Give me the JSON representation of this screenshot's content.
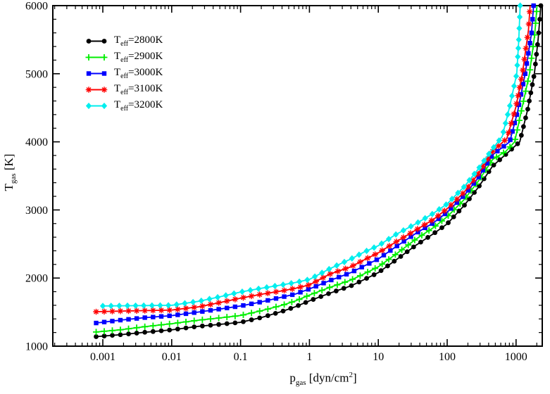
{
  "chart_data": {
    "type": "line",
    "title": "",
    "xlabel": "p_gas [dyn/cm^2]",
    "ylabel": "T_gas [K]",
    "xlabel_parts": {
      "base": "p",
      "sub": "gas",
      "mid": " [dyn/cm",
      "sup": "2",
      "end": "]"
    },
    "ylabel_parts": {
      "base": "T",
      "sub": "gas",
      "end": " [K]"
    },
    "x_scale": "log",
    "y_scale": "linear",
    "xlim": [
      0.00019,
      2400
    ],
    "ylim": [
      1000,
      6000
    ],
    "x_major_ticks": [
      0.001,
      0.01,
      0.1,
      1,
      10,
      100,
      1000
    ],
    "x_tick_labels": [
      "0.001",
      "0.01",
      "0.1",
      "1",
      "10",
      "100",
      "1000"
    ],
    "y_major_ticks": [
      1000,
      2000,
      3000,
      4000,
      5000,
      6000
    ],
    "y_tick_labels": [
      "1000",
      "2000",
      "3000",
      "4000",
      "5000",
      "6000"
    ],
    "y_minor_step": 200,
    "grid": false,
    "legend_position": "top-left",
    "series": [
      {
        "name": "Teff=2800K",
        "label_prefix": "T",
        "label_sub": "eff",
        "label_suffix": "=2800K",
        "color": "#000000",
        "marker": "circle",
        "points": [
          [
            0.0008,
            1140
          ],
          [
            0.0018,
            1168
          ],
          [
            0.004,
            1203
          ],
          [
            0.01,
            1240
          ],
          [
            0.025,
            1292
          ],
          [
            0.05,
            1320
          ],
          [
            0.1,
            1350
          ],
          [
            0.2,
            1420
          ],
          [
            0.4,
            1510
          ],
          [
            0.63,
            1580
          ],
          [
            1,
            1665
          ],
          [
            2,
            1780
          ],
          [
            4,
            1885
          ],
          [
            6.3,
            1980
          ],
          [
            10,
            2080
          ],
          [
            18,
            2265
          ],
          [
            35,
            2480
          ],
          [
            63,
            2650
          ],
          [
            100,
            2795
          ],
          [
            178,
            3070
          ],
          [
            282,
            3330
          ],
          [
            457,
            3645
          ],
          [
            708,
            3815
          ],
          [
            1132,
            4000
          ],
          [
            1479,
            4480
          ],
          [
            1845,
            5000
          ],
          [
            2089,
            5500
          ],
          [
            2290,
            6000
          ]
        ]
      },
      {
        "name": "Teff=2900K",
        "label_prefix": "T",
        "label_sub": "eff",
        "label_suffix": "=2900K",
        "color": "#00ee00",
        "marker": "plus",
        "points": [
          [
            0.0008,
            1208
          ],
          [
            0.0018,
            1240
          ],
          [
            0.004,
            1285
          ],
          [
            0.01,
            1330
          ],
          [
            0.025,
            1382
          ],
          [
            0.05,
            1415
          ],
          [
            0.1,
            1450
          ],
          [
            0.2,
            1520
          ],
          [
            0.4,
            1600
          ],
          [
            0.63,
            1665
          ],
          [
            1,
            1750
          ],
          [
            2,
            1865
          ],
          [
            4,
            1970
          ],
          [
            6.3,
            2065
          ],
          [
            10,
            2165
          ],
          [
            18,
            2350
          ],
          [
            35,
            2570
          ],
          [
            63,
            2740
          ],
          [
            100,
            2900
          ],
          [
            178,
            3156
          ],
          [
            282,
            3420
          ],
          [
            457,
            3741
          ],
          [
            708,
            3860
          ],
          [
            955,
            4000
          ],
          [
            1259,
            4560
          ],
          [
            1565,
            5000
          ],
          [
            1862,
            5570
          ],
          [
            2018,
            6000
          ]
        ]
      },
      {
        "name": "Teff=3000K",
        "label_prefix": "T",
        "label_sub": "eff",
        "label_suffix": "=3000K",
        "color": "#0000ff",
        "marker": "square",
        "points": [
          [
            0.0008,
            1340
          ],
          [
            0.0018,
            1382
          ],
          [
            0.004,
            1418
          ],
          [
            0.01,
            1448
          ],
          [
            0.025,
            1502
          ],
          [
            0.05,
            1545
          ],
          [
            0.1,
            1590
          ],
          [
            0.2,
            1650
          ],
          [
            0.4,
            1720
          ],
          [
            0.63,
            1766
          ],
          [
            1,
            1840
          ],
          [
            2,
            1965
          ],
          [
            4,
            2080
          ],
          [
            6.3,
            2180
          ],
          [
            10,
            2280
          ],
          [
            18,
            2460
          ],
          [
            35,
            2655
          ],
          [
            63,
            2810
          ],
          [
            100,
            2966
          ],
          [
            178,
            3218
          ],
          [
            282,
            3470
          ],
          [
            457,
            3810
          ],
          [
            809,
            4000
          ],
          [
            1047,
            4430
          ],
          [
            1358,
            5000
          ],
          [
            1679,
            5600
          ],
          [
            1796,
            6000
          ]
        ]
      },
      {
        "name": "Teff=3100K",
        "label_prefix": "T",
        "label_sub": "eff",
        "label_suffix": "=3100K",
        "color": "#ff0000",
        "marker": "star",
        "points": [
          [
            0.0008,
            1505
          ],
          [
            0.0018,
            1515
          ],
          [
            0.004,
            1522
          ],
          [
            0.01,
            1530
          ],
          [
            0.025,
            1578
          ],
          [
            0.05,
            1640
          ],
          [
            0.1,
            1705
          ],
          [
            0.2,
            1762
          ],
          [
            0.4,
            1812
          ],
          [
            0.63,
            1850
          ],
          [
            1,
            1900
          ],
          [
            2,
            2060
          ],
          [
            4,
            2165
          ],
          [
            6.3,
            2270
          ],
          [
            10,
            2370
          ],
          [
            18,
            2530
          ],
          [
            35,
            2705
          ],
          [
            63,
            2860
          ],
          [
            100,
            3018
          ],
          [
            178,
            3266
          ],
          [
            282,
            3530
          ],
          [
            457,
            3860
          ],
          [
            736,
            4050
          ],
          [
            1000,
            4520
          ],
          [
            1236,
            5000
          ],
          [
            1514,
            5640
          ],
          [
            1601,
            6000
          ]
        ]
      },
      {
        "name": "Teff=3200K",
        "label_prefix": "T",
        "label_sub": "eff",
        "label_suffix": "=3200K",
        "color": "#00eeee",
        "marker": "diamond",
        "points": [
          [
            0.001,
            1590
          ],
          [
            0.0018,
            1593
          ],
          [
            0.004,
            1596
          ],
          [
            0.01,
            1600
          ],
          [
            0.025,
            1660
          ],
          [
            0.05,
            1725
          ],
          [
            0.1,
            1795
          ],
          [
            0.2,
            1850
          ],
          [
            0.4,
            1900
          ],
          [
            0.63,
            1935
          ],
          [
            1,
            1980
          ],
          [
            2,
            2140
          ],
          [
            4,
            2280
          ],
          [
            6.3,
            2385
          ],
          [
            10,
            2475
          ],
          [
            18,
            2640
          ],
          [
            35,
            2797
          ],
          [
            63,
            2950
          ],
          [
            100,
            3090
          ],
          [
            178,
            3345
          ],
          [
            282,
            3600
          ],
          [
            457,
            3900
          ],
          [
            631,
            4080
          ],
          [
            813,
            4530
          ],
          [
            1023,
            5000
          ],
          [
            1096,
            5500
          ],
          [
            1148,
            6000
          ]
        ]
      }
    ]
  }
}
